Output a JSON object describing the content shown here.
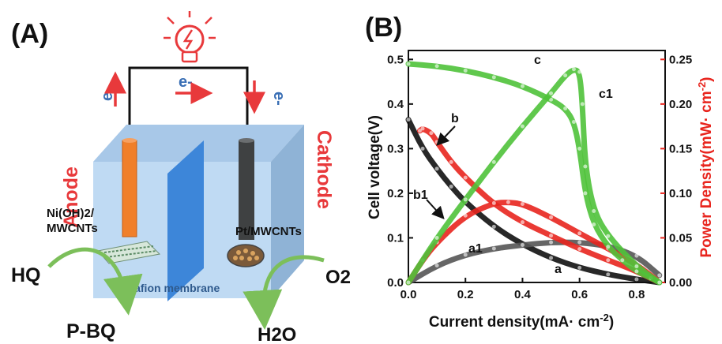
{
  "panel_a": {
    "label": "(A)",
    "bulb_icon": "lightbulb-icon",
    "electron_left": "e-",
    "electron_middle": "e-",
    "electron_right": "e-",
    "anode_label": "Anode",
    "cathode_label": "Cathode",
    "anode_material_line1": "Ni(OH)2/",
    "anode_material_line2": "MWCNTs",
    "cathode_material": "Pt/MWCNTs",
    "membrane_label": "Nafion membrane",
    "reactant_left": "HQ",
    "product_left": "P-BQ",
    "reactant_right": "O2",
    "product_right": "H2O",
    "colors": {
      "accent_red": "#e8393b",
      "electron_blue": "#3a6fb5",
      "box_blue": "#b9d7f2",
      "membrane": "#3d86d9",
      "anode_rod": "#f07f2a",
      "cathode_rod": "#3f4142",
      "arrow_green": "#7cbf5a"
    }
  },
  "panel_b": {
    "label": "(B)",
    "xlabel": "Current density(mA· cm",
    "xlabel_exp": "-2",
    "ylabel_left": "Cell voltage(V)",
    "ylabel_right": "Power Density(mW· cm",
    "ylabel_right_exp": "-2",
    "xticks": [
      "0.0",
      "0.2",
      "0.4",
      "0.6",
      "0.8"
    ],
    "yticks_left": [
      "0.0",
      "0.1",
      "0.2",
      "0.3",
      "0.4",
      "0.5"
    ],
    "yticks_right": [
      "0.00",
      "0.05",
      "0.10",
      "0.15",
      "0.20",
      "0.25"
    ],
    "curve_labels": {
      "a": "a",
      "a1": "a1",
      "b": "b",
      "b1": "b1",
      "c": "c",
      "c1": "c1"
    },
    "colors": {
      "black": "#111111",
      "gray": "#555555",
      "red": "#e8251e",
      "green": "#4fc23a",
      "right_axis": "#e8251e"
    }
  },
  "chart_data": {
    "type": "line",
    "xlabel": "Current density(mA· cm-2)",
    "ylabel": "Cell voltage(V)",
    "y2label": "Power Density(mW· cm-2)",
    "xlim": [
      0.0,
      0.9
    ],
    "ylim": [
      0.0,
      0.52
    ],
    "y2lim": [
      0.0,
      0.26
    ],
    "series": [
      {
        "name": "a",
        "axis": "left",
        "color": "#111111",
        "x": [
          0.0,
          0.05,
          0.1,
          0.15,
          0.2,
          0.3,
          0.4,
          0.5,
          0.6,
          0.7,
          0.8,
          0.88
        ],
        "y": [
          0.365,
          0.3,
          0.255,
          0.215,
          0.18,
          0.125,
          0.085,
          0.055,
          0.033,
          0.018,
          0.007,
          0.0
        ]
      },
      {
        "name": "a1",
        "axis": "right",
        "color": "#555555",
        "x": [
          0.0,
          0.1,
          0.2,
          0.3,
          0.4,
          0.5,
          0.6,
          0.7,
          0.8,
          0.88
        ],
        "y": [
          0.0,
          0.019,
          0.031,
          0.038,
          0.042,
          0.045,
          0.045,
          0.041,
          0.03,
          0.008
        ]
      },
      {
        "name": "b",
        "axis": "left",
        "color": "#e8251e",
        "x": [
          0.04,
          0.05,
          0.08,
          0.1,
          0.15,
          0.2,
          0.3,
          0.4,
          0.5,
          0.6,
          0.7,
          0.8,
          0.87
        ],
        "y": [
          0.34,
          0.345,
          0.335,
          0.315,
          0.27,
          0.235,
          0.175,
          0.135,
          0.105,
          0.075,
          0.05,
          0.025,
          0.003
        ]
      },
      {
        "name": "b1",
        "axis": "right",
        "color": "#e8251e",
        "x": [
          0.0,
          0.05,
          0.1,
          0.2,
          0.3,
          0.35,
          0.4,
          0.5,
          0.6,
          0.7,
          0.8,
          0.87
        ],
        "y": [
          0.0,
          0.025,
          0.045,
          0.075,
          0.089,
          0.09,
          0.088,
          0.073,
          0.055,
          0.038,
          0.02,
          0.003
        ]
      },
      {
        "name": "c",
        "axis": "left",
        "color": "#4fc23a",
        "x": [
          0.0,
          0.1,
          0.2,
          0.3,
          0.4,
          0.5,
          0.55,
          0.58,
          0.6,
          0.62,
          0.65,
          0.7,
          0.75,
          0.8,
          0.85,
          0.88
        ],
        "y": [
          0.49,
          0.485,
          0.475,
          0.46,
          0.44,
          0.41,
          0.39,
          0.36,
          0.3,
          0.2,
          0.13,
          0.08,
          0.05,
          0.025,
          0.01,
          0.0
        ]
      },
      {
        "name": "c1",
        "axis": "right",
        "color": "#4fc23a",
        "x": [
          0.0,
          0.1,
          0.2,
          0.3,
          0.4,
          0.5,
          0.55,
          0.58,
          0.6,
          0.61,
          0.62,
          0.65,
          0.7,
          0.8,
          0.88
        ],
        "y": [
          0.0,
          0.05,
          0.093,
          0.135,
          0.175,
          0.212,
          0.232,
          0.239,
          0.236,
          0.2,
          0.13,
          0.08,
          0.052,
          0.018,
          0.0
        ]
      }
    ]
  }
}
